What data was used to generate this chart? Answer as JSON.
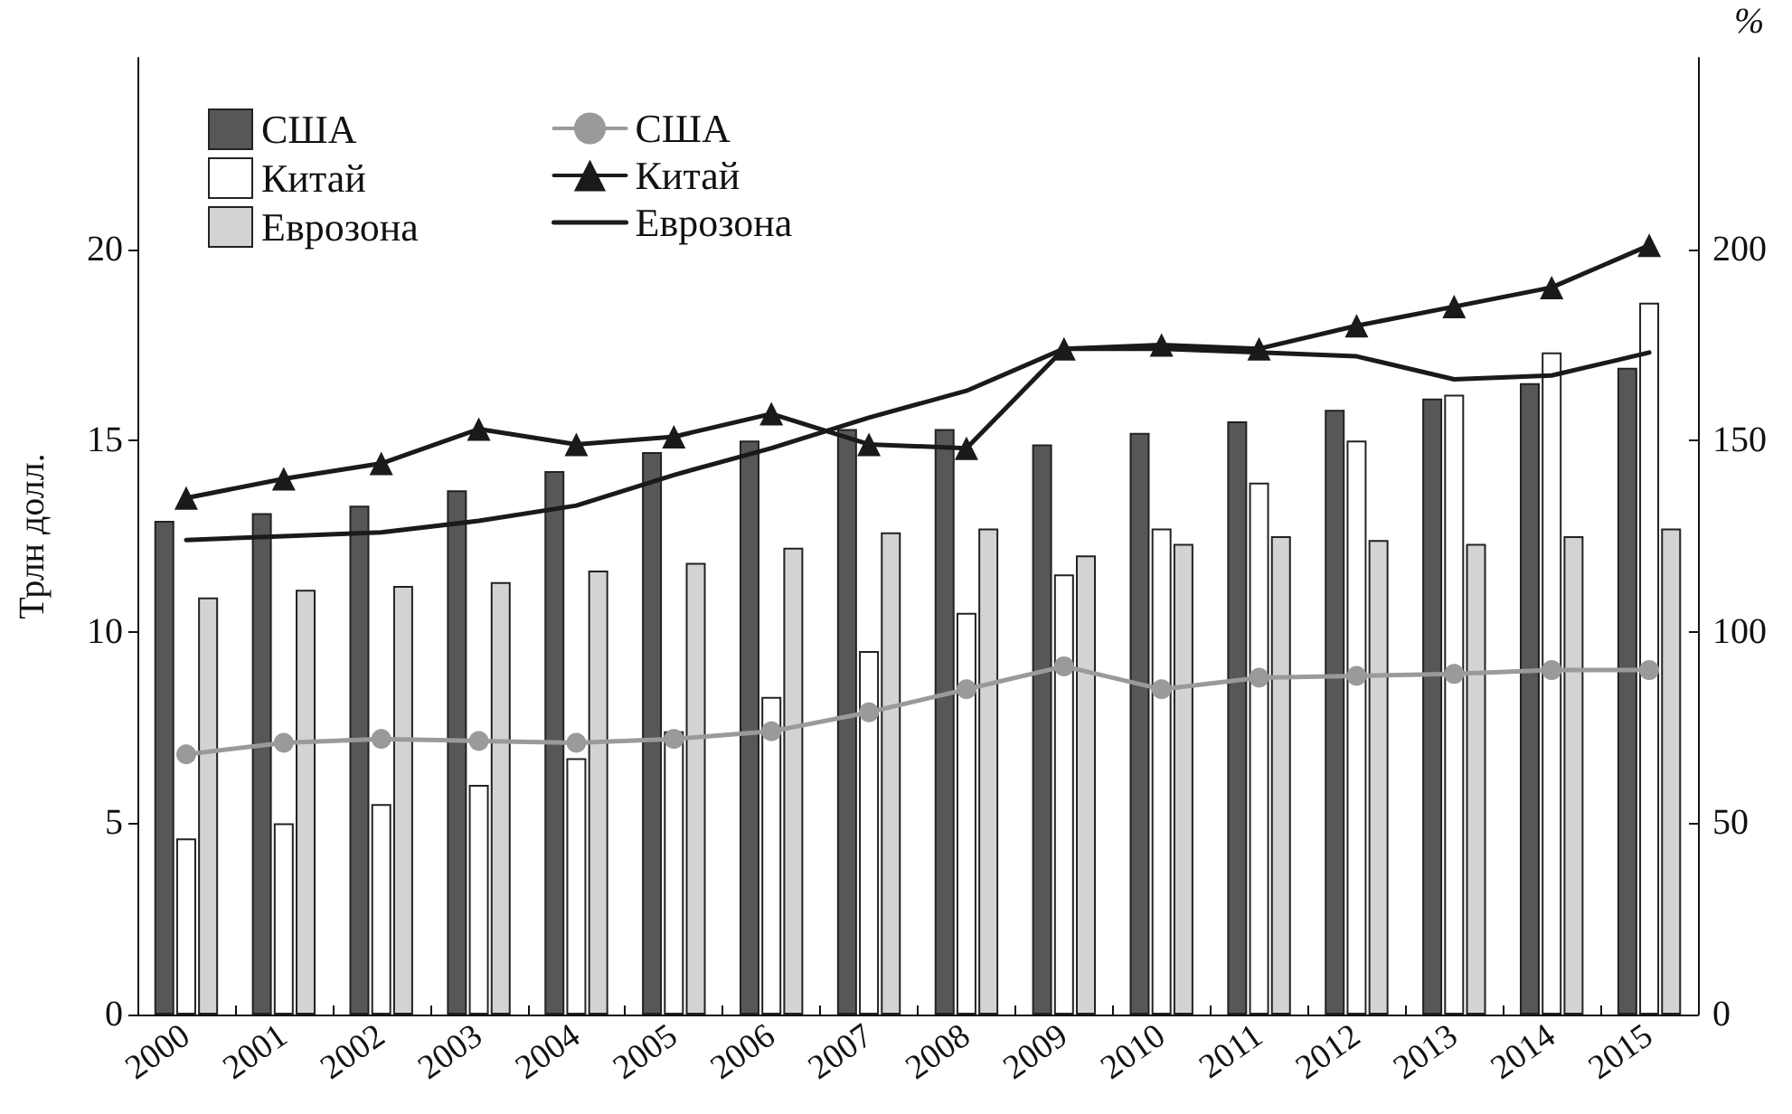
{
  "chart_data": {
    "type": "bar",
    "ylabel": "Трлн долл.",
    "y2label": "%",
    "categories": [
      "2000",
      "2001",
      "2002",
      "2003",
      "2004",
      "2005",
      "2006",
      "2007",
      "2008",
      "2009",
      "2010",
      "2011",
      "2012",
      "2013",
      "2014",
      "2015"
    ],
    "series": [
      {
        "name": "США",
        "type": "line",
        "axis": "y2",
        "color": "#9a9a9a",
        "marker": "circle",
        "values": [
          68,
          71,
          72,
          71.5,
          71,
          72,
          74,
          79,
          85,
          91,
          85,
          88,
          88.5,
          89,
          90,
          90
        ]
      },
      {
        "name": "Китай",
        "type": "line",
        "axis": "y2",
        "color": "#1a1a1a",
        "marker": "triangle",
        "values": [
          135,
          140,
          144,
          153,
          149,
          151,
          157,
          149,
          148,
          174,
          175,
          174,
          180,
          185,
          190,
          201
        ]
      },
      {
        "name": "Еврозона",
        "type": "line",
        "axis": "y2",
        "color": "#1a1a1a",
        "marker": "none",
        "values": [
          124,
          125,
          126,
          129,
          133,
          141,
          148,
          156,
          163,
          174,
          174,
          173,
          172,
          166,
          167,
          173
        ]
      },
      {
        "name": "США",
        "color": "#555759",
        "values": [
          12.9,
          13.1,
          13.3,
          13.7,
          14.2,
          14.7,
          15.0,
          15.3,
          15.3,
          14.9,
          15.2,
          15.5,
          15.8,
          16.1,
          16.5,
          16.9
        ]
      },
      {
        "name": "Китай",
        "color": "#ffffff",
        "values": [
          4.6,
          5.0,
          5.5,
          6.0,
          6.7,
          7.4,
          8.3,
          9.5,
          10.5,
          11.5,
          12.7,
          13.9,
          15.0,
          16.2,
          17.3,
          18.6
        ]
      },
      {
        "name": "Еврозона",
        "color": "#d2d3d5",
        "values": [
          10.9,
          11.1,
          11.2,
          11.3,
          11.6,
          11.8,
          12.2,
          12.6,
          12.7,
          12.0,
          12.3,
          12.5,
          12.4,
          12.3,
          12.5,
          12.7
        ]
      }
    ],
    "ylim": [
      0,
      25
    ],
    "yticks": [
      0,
      5,
      10,
      15,
      20
    ],
    "y2lim": [
      0,
      250
    ],
    "y2ticks": [
      0,
      50,
      100,
      150,
      200
    ],
    "grid": false,
    "legend": "top left"
  }
}
